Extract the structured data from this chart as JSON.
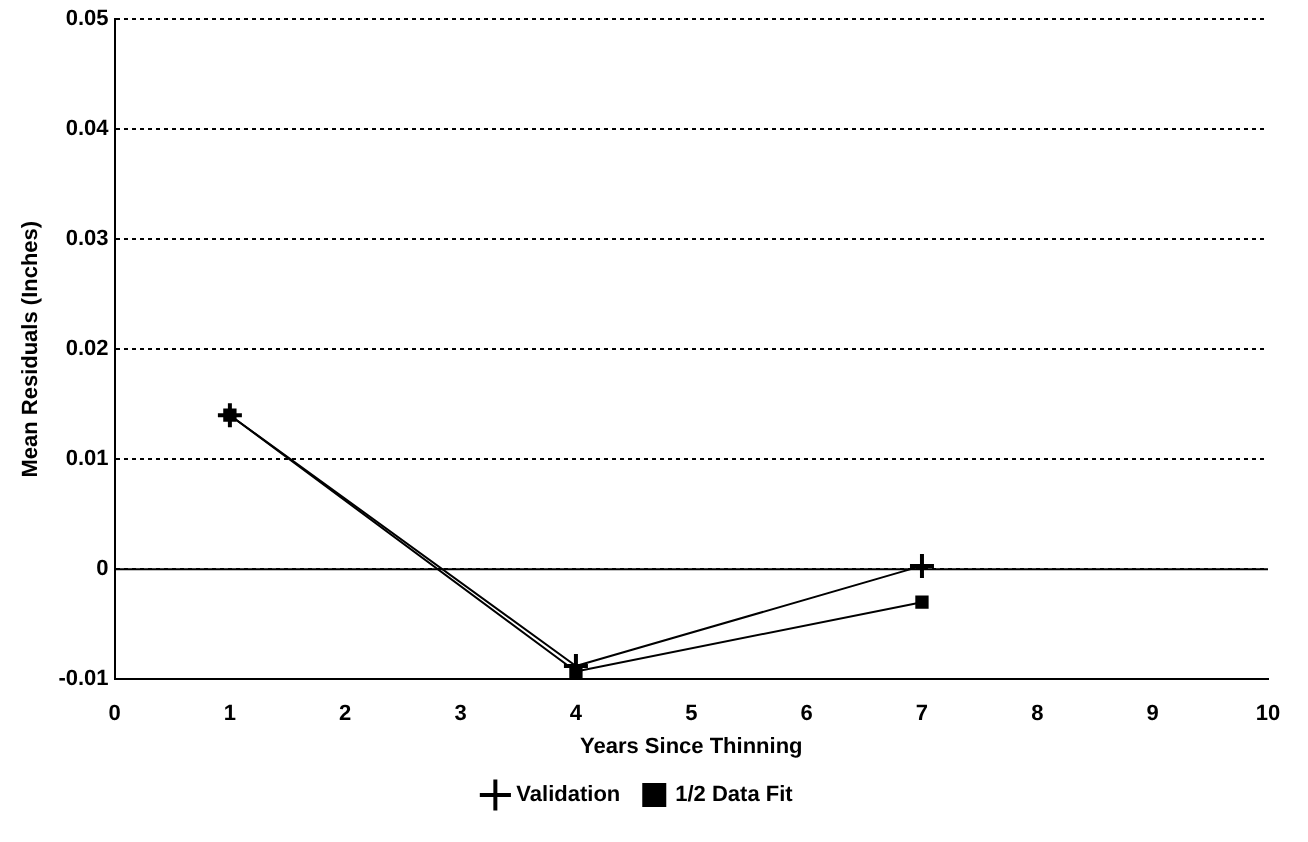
{
  "chart_data": {
    "type": "line",
    "xlabel": "Years Since Thinning",
    "ylabel": "Mean Residuals (Inches)",
    "xlim": [
      0,
      10
    ],
    "xticks": [
      0,
      1,
      2,
      3,
      4,
      5,
      6,
      7,
      8,
      9,
      10
    ],
    "ylim": [
      -0.01,
      0.05
    ],
    "yticks": [
      -0.01,
      0,
      0.01,
      0.02,
      0.03,
      0.04,
      0.05
    ],
    "grid": "y",
    "legend": "bottom",
    "ref_lines": [
      {
        "axis": "y",
        "value": 0,
        "color": "#000000",
        "line_style": "solid"
      }
    ],
    "series": [
      {
        "name": "1/2 Data Fit",
        "color": "#000000",
        "marker": "square",
        "x": [
          1,
          4,
          7
        ],
        "values": [
          0.014,
          -0.0093,
          -0.003
        ]
      },
      {
        "name": "Validation",
        "color": "#000000",
        "marker": "cross",
        "x": [
          1,
          4,
          7
        ],
        "values": [
          0.014,
          -0.0088,
          0.0003
        ]
      }
    ]
  }
}
